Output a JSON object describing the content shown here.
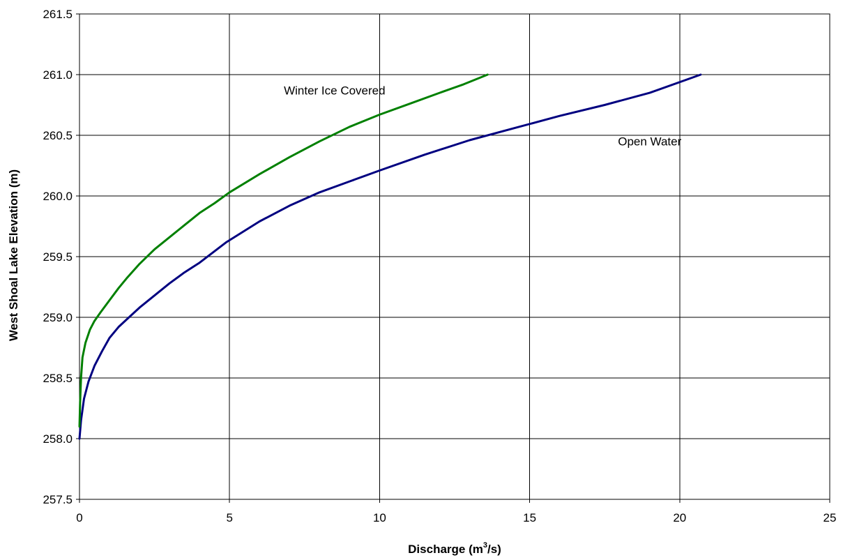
{
  "chart_data": {
    "type": "line",
    "title": "",
    "xlabel": "Discharge (m",
    "xlabel_sup": "3",
    "xlabel_end": "/s)",
    "ylabel": "West Shoal Lake Elevation (m)",
    "xlim": [
      0,
      25
    ],
    "ylim": [
      257.5,
      261.5
    ],
    "x_ticks": [
      0,
      5,
      10,
      15,
      20,
      25
    ],
    "x_tick_labels": [
      "0",
      "5",
      "10",
      "15",
      "20",
      "25"
    ],
    "y_ticks": [
      257.5,
      258.0,
      258.5,
      259.0,
      259.5,
      260.0,
      260.5,
      261.0,
      261.5
    ],
    "y_tick_labels": [
      "257.5",
      "258.0",
      "258.5",
      "259.0",
      "259.5",
      "260.0",
      "260.5",
      "261.0",
      "261.5"
    ],
    "grid": true,
    "legend": "none",
    "series": [
      {
        "name": "Open Water",
        "color": "#000080",
        "x": [
          0,
          0.05,
          0.15,
          0.3,
          0.5,
          0.75,
          1.0,
          1.3,
          1.65,
          2.0,
          2.5,
          3.0,
          3.5,
          4.0,
          4.9,
          6.0,
          7.0,
          8.0,
          9.0,
          10.0,
          11.5,
          13.0,
          14.5,
          16.0,
          17.5,
          19.0,
          20.7
        ],
        "y": [
          258.0,
          258.15,
          258.33,
          258.47,
          258.6,
          258.72,
          258.83,
          258.92,
          259.0,
          259.08,
          259.18,
          259.28,
          259.37,
          259.45,
          259.62,
          259.79,
          259.92,
          260.03,
          260.12,
          260.21,
          260.34,
          260.46,
          260.56,
          260.66,
          260.75,
          260.85,
          261.0
        ]
      },
      {
        "name": "Winter Ice Covered",
        "color": "#008000",
        "x": [
          0,
          0.02,
          0.05,
          0.1,
          0.2,
          0.35,
          0.5,
          0.7,
          1.0,
          1.3,
          1.6,
          2.0,
          2.5,
          3.0,
          3.5,
          4.0,
          4.5,
          5.0,
          6.0,
          7.0,
          8.0,
          9.0,
          10.0,
          11.0,
          12.0,
          12.8,
          13.6
        ],
        "y": [
          258.1,
          258.3,
          258.5,
          258.67,
          258.79,
          258.9,
          258.97,
          259.04,
          259.14,
          259.24,
          259.33,
          259.44,
          259.56,
          259.66,
          259.76,
          259.86,
          259.94,
          260.03,
          260.18,
          260.32,
          260.45,
          260.57,
          260.67,
          260.76,
          260.85,
          260.92,
          261.0
        ]
      }
    ],
    "annotations": [
      {
        "text": "Winter Ice Covered",
        "x": 8.5,
        "y": 260.87
      },
      {
        "text": "Open Water",
        "x": 19.0,
        "y": 260.45
      }
    ]
  }
}
